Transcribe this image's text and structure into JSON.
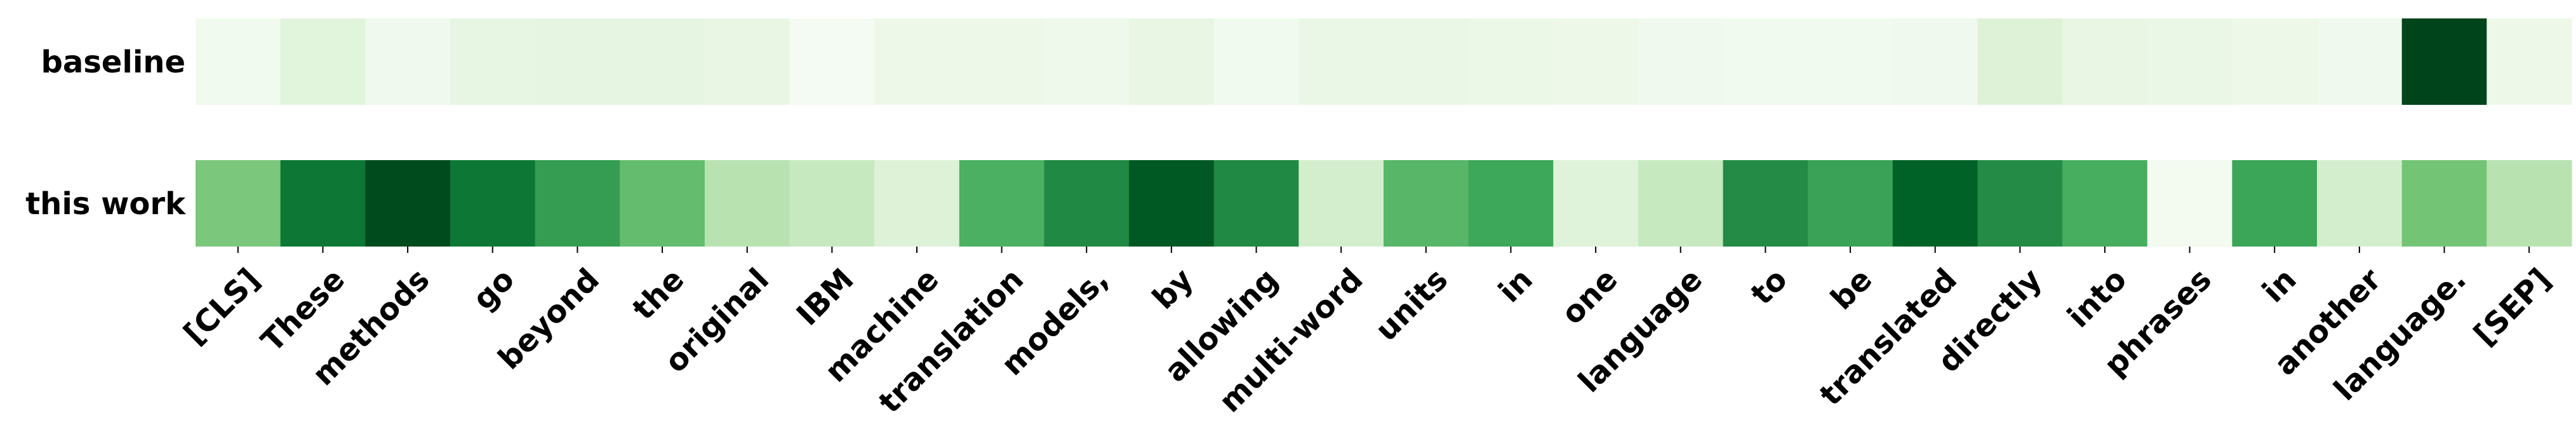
{
  "chart_data": {
    "type": "heatmap",
    "title": "",
    "xlabel": "",
    "ylabel": "",
    "colormap": "Greens",
    "color_low": "#f7fcf5",
    "color_high": "#00441b",
    "rows": [
      "baseline",
      "this work"
    ],
    "tokens": [
      "[CLS]",
      "These",
      "methods",
      "go",
      "beyond",
      "the",
      "original",
      "IBM",
      "machine",
      "translation",
      "models,",
      "by",
      "allowing",
      "multi-word",
      "units",
      "in",
      "one",
      "language",
      "to",
      "be",
      "translated",
      "directly",
      "into",
      "phrases",
      "in",
      "another",
      "language.",
      "[SEP]"
    ],
    "values": [
      [
        0.04,
        0.14,
        0.05,
        0.11,
        0.12,
        0.12,
        0.1,
        0.02,
        0.07,
        0.07,
        0.06,
        0.1,
        0.04,
        0.09,
        0.09,
        0.08,
        0.07,
        0.05,
        0.04,
        0.04,
        0.05,
        0.16,
        0.1,
        0.09,
        0.07,
        0.05,
        1.0,
        0.07
      ],
      [
        0.48,
        0.83,
        0.98,
        0.83,
        0.68,
        0.54,
        0.3,
        0.25,
        0.16,
        0.6,
        0.76,
        0.94,
        0.76,
        0.2,
        0.57,
        0.64,
        0.15,
        0.25,
        0.75,
        0.66,
        0.91,
        0.75,
        0.61,
        0.03,
        0.65,
        0.2,
        0.5,
        0.3
      ]
    ]
  }
}
